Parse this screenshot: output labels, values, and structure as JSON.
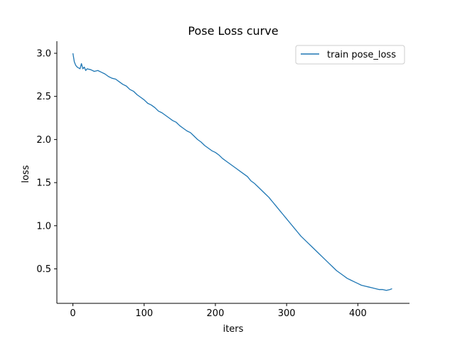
{
  "chart_data": {
    "type": "line",
    "title": "Pose Loss curve",
    "xlabel": "iters",
    "ylabel": "loss",
    "xlim": [
      -22.5,
      472.5
    ],
    "ylim": [
      0.1,
      3.14
    ],
    "xticks": [
      0,
      100,
      200,
      300,
      400
    ],
    "yticks": [
      0.5,
      1.0,
      1.5,
      2.0,
      2.5,
      3.0
    ],
    "xtick_labels": [
      "0",
      "100",
      "200",
      "300",
      "400"
    ],
    "ytick_labels": [
      "0.5",
      "1.0",
      "1.5",
      "2.0",
      "2.5",
      "3.0"
    ],
    "spines": [
      "left",
      "bottom"
    ],
    "grid": false,
    "legend_position": "top-right",
    "series": [
      {
        "name": "train pose_loss",
        "color": "#1f77b4",
        "x": [
          0,
          2,
          4,
          6,
          8,
          10,
          12,
          14,
          16,
          18,
          20,
          25,
          30,
          35,
          40,
          45,
          50,
          55,
          60,
          65,
          70,
          75,
          80,
          85,
          90,
          95,
          100,
          105,
          110,
          115,
          120,
          125,
          130,
          135,
          140,
          145,
          150,
          155,
          160,
          165,
          170,
          175,
          180,
          185,
          190,
          195,
          200,
          205,
          210,
          215,
          220,
          225,
          230,
          235,
          240,
          245,
          250,
          255,
          260,
          265,
          270,
          275,
          280,
          285,
          290,
          295,
          300,
          305,
          310,
          315,
          320,
          325,
          330,
          335,
          340,
          345,
          350,
          355,
          360,
          365,
          370,
          375,
          380,
          385,
          390,
          395,
          400,
          405,
          410,
          415,
          420,
          425,
          430,
          435,
          440,
          445,
          448
        ],
        "y": [
          3.0,
          2.9,
          2.86,
          2.84,
          2.83,
          2.82,
          2.88,
          2.82,
          2.84,
          2.8,
          2.82,
          2.81,
          2.79,
          2.8,
          2.78,
          2.76,
          2.73,
          2.71,
          2.7,
          2.67,
          2.64,
          2.62,
          2.58,
          2.56,
          2.52,
          2.49,
          2.46,
          2.42,
          2.4,
          2.37,
          2.33,
          2.31,
          2.28,
          2.25,
          2.22,
          2.2,
          2.16,
          2.13,
          2.1,
          2.08,
          2.04,
          2.0,
          1.97,
          1.93,
          1.9,
          1.87,
          1.85,
          1.82,
          1.78,
          1.75,
          1.72,
          1.69,
          1.66,
          1.63,
          1.6,
          1.57,
          1.52,
          1.49,
          1.45,
          1.41,
          1.37,
          1.33,
          1.28,
          1.23,
          1.18,
          1.13,
          1.08,
          1.03,
          0.98,
          0.93,
          0.88,
          0.84,
          0.8,
          0.76,
          0.72,
          0.68,
          0.64,
          0.6,
          0.56,
          0.52,
          0.48,
          0.45,
          0.42,
          0.39,
          0.37,
          0.35,
          0.33,
          0.31,
          0.3,
          0.29,
          0.28,
          0.27,
          0.26,
          0.26,
          0.25,
          0.26,
          0.27
        ]
      }
    ]
  }
}
